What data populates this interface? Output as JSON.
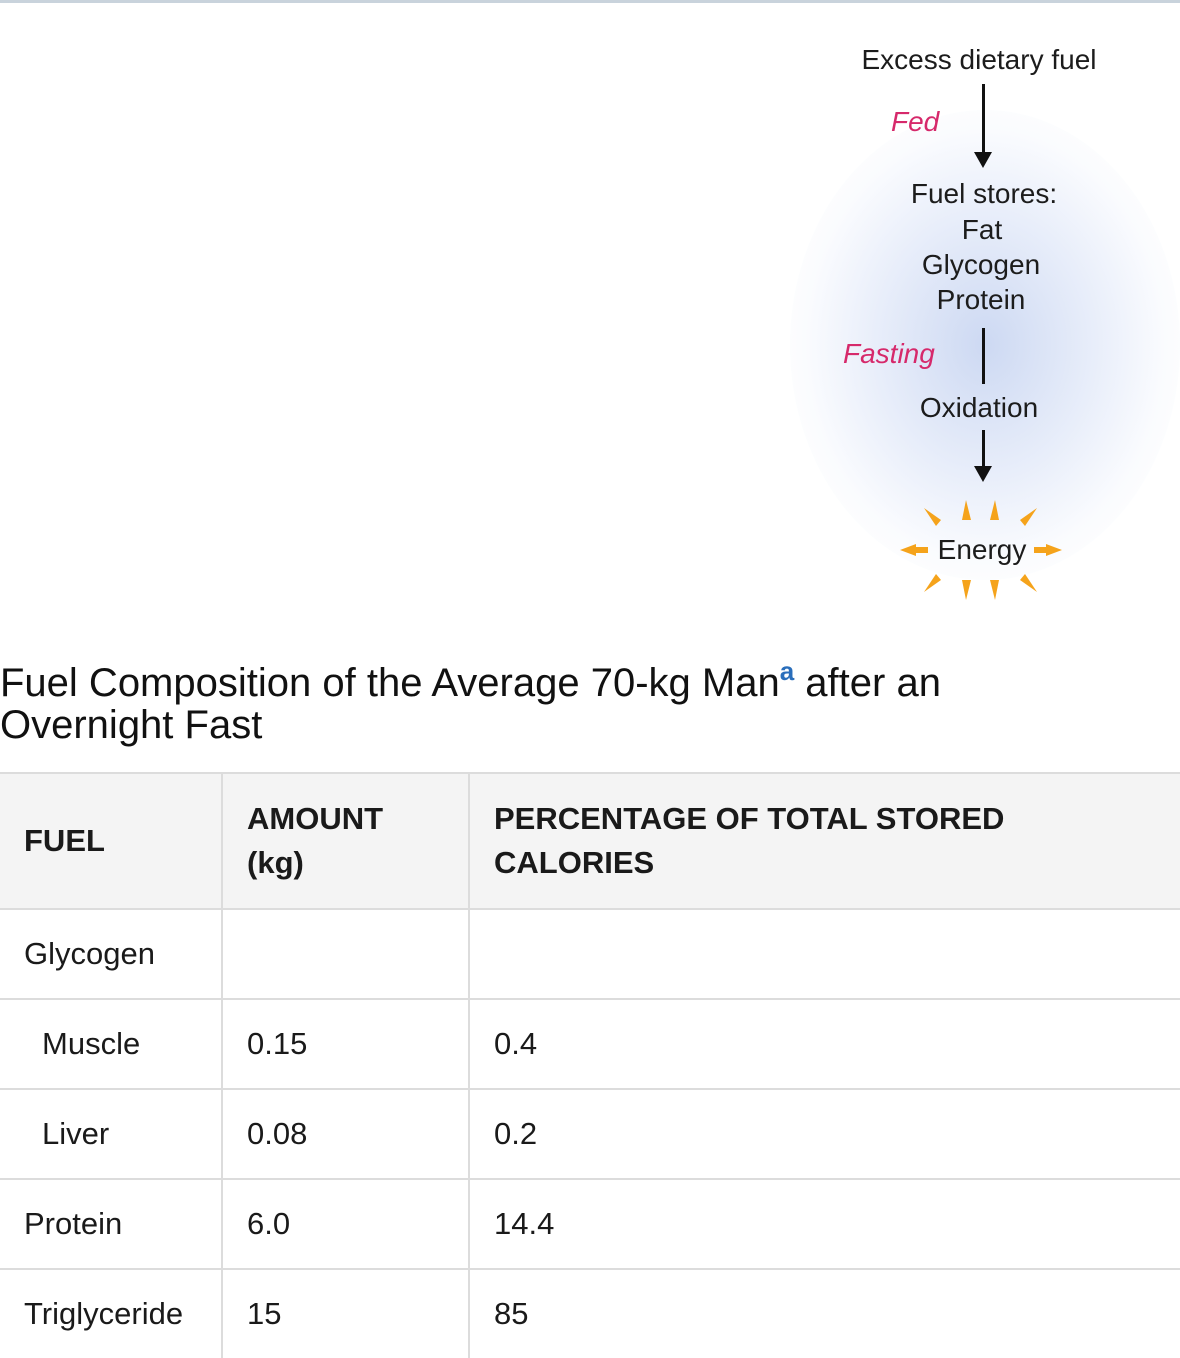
{
  "diagram": {
    "top_label": "Excess dietary fuel",
    "fed_label": "Fed",
    "stores_title": "Fuel stores:",
    "stores_items": [
      "Fat",
      "Glycogen",
      "Protein"
    ],
    "fasting_label": "Fasting",
    "oxidation_label": "Oxidation",
    "energy_label": "Energy",
    "colors": {
      "phase_label": "#d6296b",
      "burst": "#f5a31b",
      "glow": "#c4d2f0"
    }
  },
  "table": {
    "title_main": "Fuel Composition of the Average 70-kg Man",
    "title_footnote": "a",
    "title_rest_line1": " after an",
    "title_line2": "Overnight Fast",
    "headers": {
      "fuel": "FUEL",
      "amount_line1": "AMOUNT",
      "amount_line2": "(kg)",
      "percent_line1": "PERCENTAGE OF TOTAL STORED",
      "percent_line2": "CALORIES"
    },
    "rows": [
      {
        "fuel": "Glycogen",
        "amount": "",
        "percent": ""
      },
      {
        "fuel": "Muscle",
        "amount": "0.15",
        "percent": "0.4"
      },
      {
        "fuel": "Liver",
        "amount": "0.08",
        "percent": "0.2"
      },
      {
        "fuel": "Protein",
        "amount": "6.0",
        "percent": "14.4"
      },
      {
        "fuel": "Triglyceride",
        "amount": "15",
        "percent": "85"
      }
    ],
    "footnote_color": "#2a6ebb"
  }
}
